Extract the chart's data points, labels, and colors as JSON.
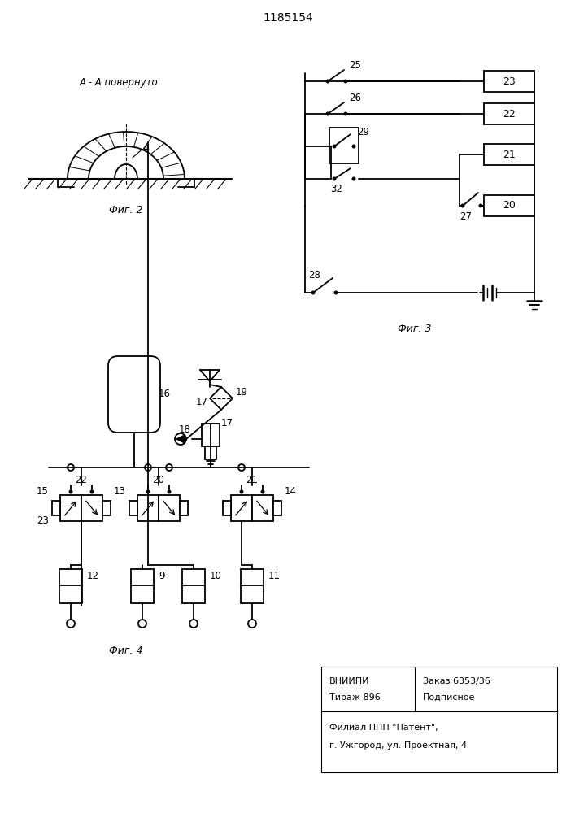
{
  "title": "1185154",
  "fig2_label": "А - А повернуто",
  "fig2_caption": "Фиг. 2",
  "fig3_caption": "Фиг. 3",
  "fig4_caption": "Фиг. 4",
  "footer_line1a": "ВНИИПИ",
  "footer_line1b": "Заказ 6353/36",
  "footer_line2a": "Тираж 896",
  "footer_line2b": "Подписное",
  "footer_line3": "Филиал ППП \"Патент\",",
  "footer_line4": "г. Ужгород, ул. Проектная, 4",
  "line_color": "#000000"
}
